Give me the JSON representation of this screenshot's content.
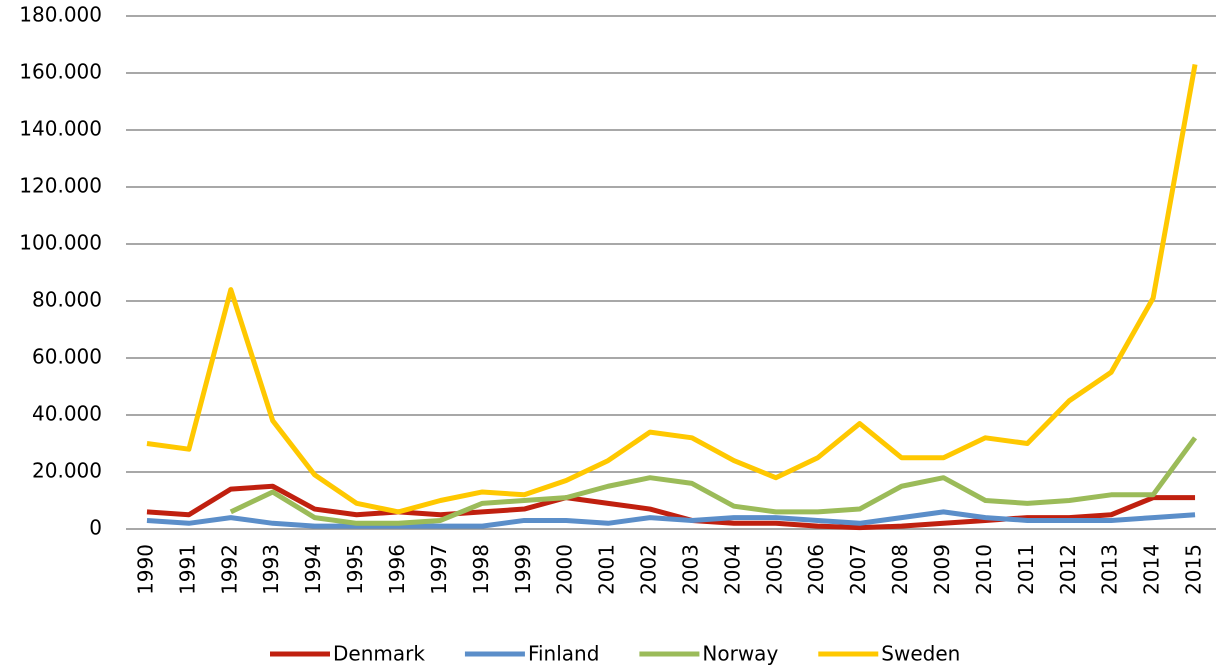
{
  "chart_data": {
    "type": "line",
    "categories": [
      "1990",
      "1991",
      "1992",
      "1993",
      "1994",
      "1995",
      "1996",
      "1997",
      "1998",
      "1999",
      "2000",
      "2001",
      "2002",
      "2003",
      "2004",
      "2005",
      "2006",
      "2007",
      "2008",
      "2009",
      "2010",
      "2011",
      "2012",
      "2013",
      "2014",
      "2015"
    ],
    "series": [
      {
        "name": "Denmark",
        "color": "#c0200f",
        "values": [
          6000,
          5000,
          14000,
          15000,
          7000,
          5000,
          6000,
          5000,
          6000,
          7000,
          11000,
          9000,
          7000,
          3000,
          2000,
          2000,
          1000,
          500,
          1000,
          2000,
          3000,
          4000,
          4000,
          5000,
          11000,
          11000
        ]
      },
      {
        "name": "Finland",
        "color": "#5b8ec9",
        "values": [
          3000,
          2000,
          4000,
          2000,
          1000,
          1000,
          1000,
          1000,
          1000,
          3000,
          3000,
          2000,
          4000,
          3000,
          4000,
          4000,
          3000,
          2000,
          4000,
          6000,
          4000,
          3000,
          3000,
          3000,
          4000,
          5000
        ]
      },
      {
        "name": "Norway",
        "color": "#9bbb59",
        "values": [
          null,
          null,
          6000,
          13000,
          4000,
          2000,
          2000,
          3000,
          9000,
          10000,
          11000,
          15000,
          18000,
          16000,
          8000,
          6000,
          6000,
          7000,
          15000,
          18000,
          10000,
          9000,
          10000,
          12000,
          12000,
          32000
        ]
      },
      {
        "name": "Sweden",
        "color": "#ffc800",
        "values": [
          30000,
          28000,
          84000,
          38000,
          19000,
          9000,
          6000,
          10000,
          13000,
          12000,
          17000,
          24000,
          34000,
          32000,
          24000,
          18000,
          25000,
          37000,
          25000,
          25000,
          32000,
          30000,
          45000,
          55000,
          81000,
          163000
        ]
      }
    ],
    "ylim": [
      0,
      180000
    ],
    "yticks": [
      0,
      {
        "value": 20000,
        "label": "20.000"
      },
      {
        "value": 40000,
        "label": "40.000"
      },
      {
        "value": 60000,
        "label": "60.000"
      },
      {
        "value": 80000,
        "label": "80.000"
      },
      {
        "value": 100000,
        "label": "100.000"
      },
      {
        "value": 120000,
        "label": "120.000"
      },
      {
        "value": 140000,
        "label": "140.000"
      },
      {
        "value": 160000,
        "label": "160.000"
      },
      {
        "value": 180000,
        "label": "180.000"
      }
    ],
    "grid": true,
    "legend": "bottom"
  }
}
